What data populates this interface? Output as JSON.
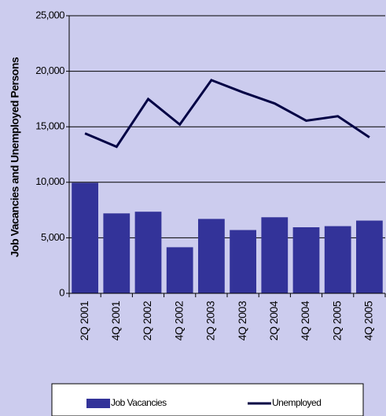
{
  "chart_data": {
    "type": "bar_line",
    "y_label": "Job Vacancies and Unemployed Persons",
    "categories": [
      "2Q 2001",
      "4Q 2001",
      "2Q 2002",
      "4Q 2002",
      "2Q 2003",
      "4Q 2003",
      "2Q 2004",
      "4Q 2004",
      "2Q 2005",
      "4Q 2005"
    ],
    "series": [
      {
        "name": "Job Vacancies",
        "type": "bar",
        "color": "#333399",
        "values": [
          9950,
          7200,
          7350,
          4150,
          6700,
          5700,
          6850,
          5950,
          6050,
          6550
        ]
      },
      {
        "name": "Unemployed",
        "type": "line",
        "color": "#000044",
        "values": [
          14400,
          13200,
          17500,
          15200,
          19200,
          18100,
          17100,
          15550,
          15950,
          14050
        ]
      }
    ],
    "ylim": [
      0,
      25000
    ],
    "yticks": [
      0,
      {
        "value": 5000,
        "label": "5,000"
      },
      {
        "value": 10000,
        "label": "10,000"
      },
      {
        "value": 15000,
        "label": "15,000"
      },
      {
        "value": 20000,
        "label": "20,000"
      },
      {
        "value": 25000,
        "label": "25,000"
      }
    ],
    "grid": true
  }
}
